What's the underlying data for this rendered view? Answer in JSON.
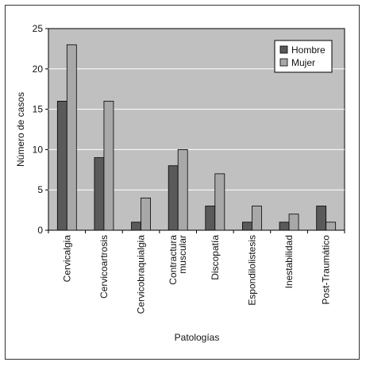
{
  "chart_data": {
    "type": "bar",
    "categories": [
      "Cervicalgia",
      "Cervicoartrosis",
      "Cervicobraquialgia",
      "Contractura muscular",
      "Discopatía",
      "Espondilolistesis",
      "Inestabilidad",
      "Post-Traumático"
    ],
    "category_lines": [
      [
        "Cervicalgia"
      ],
      [
        "Cervicoartrosis"
      ],
      [
        "Cervicobraquialgia"
      ],
      [
        "Contractura",
        "muscular"
      ],
      [
        "Discopatía"
      ],
      [
        "Espondilolistesis"
      ],
      [
        "Inestabilidad"
      ],
      [
        "Post-Traumático"
      ]
    ],
    "series": [
      {
        "name": "Hombre",
        "color": "#5a5a5a",
        "values": [
          16,
          9,
          1,
          8,
          3,
          1,
          1,
          3
        ]
      },
      {
        "name": "Mujer",
        "color": "#a8a8a8",
        "values": [
          23,
          16,
          4,
          10,
          7,
          3,
          2,
          1
        ]
      }
    ],
    "xlabel": "Patologías",
    "ylabel": "Número de casos",
    "ylim": [
      0,
      25
    ],
    "yticks": [
      0,
      5,
      10,
      15,
      20,
      25
    ],
    "grid": true,
    "plot_background": "#c0c0c0",
    "legend_position": "top-right"
  }
}
